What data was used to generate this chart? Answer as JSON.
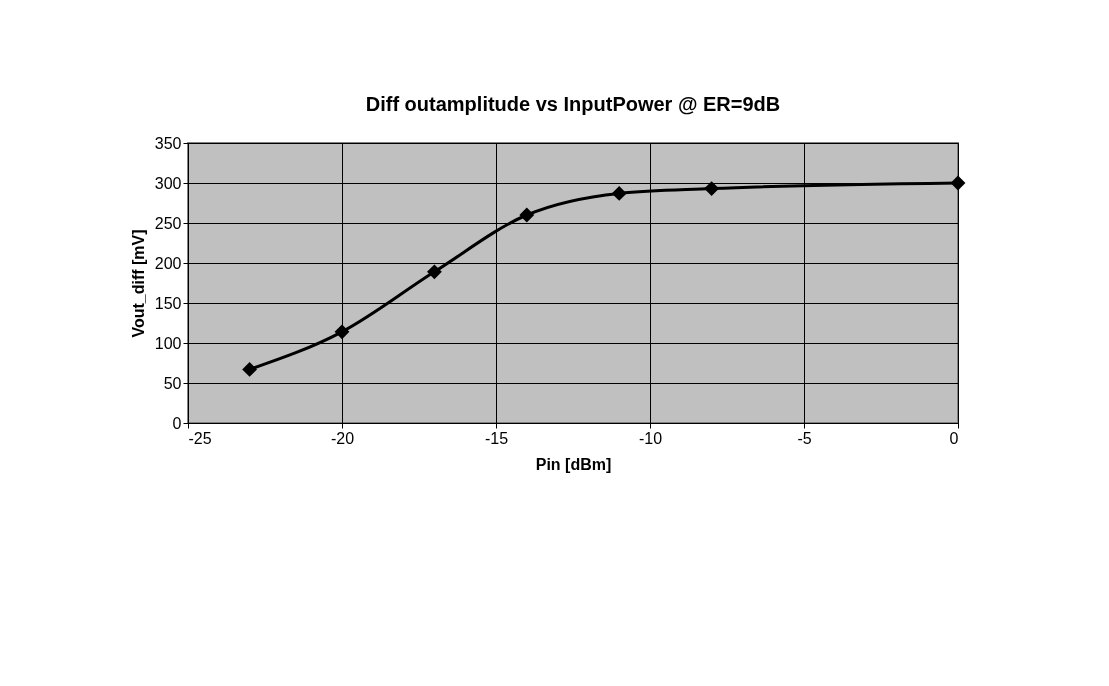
{
  "chart_data": {
    "type": "line",
    "title": "Diff outamplitude vs InputPower @ ER=9dB",
    "xlabel": "Pin [dBm]",
    "ylabel": "Vout_diff [mV]",
    "x": [
      -23,
      -20,
      -17,
      -14,
      -11,
      -8,
      0
    ],
    "series": [
      {
        "color": "#000000",
        "values": [
          67,
          114,
          189,
          260,
          287,
          293,
          300
        ]
      }
    ],
    "xlim": [
      -25,
      0
    ],
    "xticks": [
      -25,
      -20,
      -15,
      -10,
      -5,
      0
    ],
    "ylim": [
      0,
      350
    ],
    "yticks": [
      0,
      50,
      100,
      150,
      200,
      250,
      300,
      350
    ],
    "grid": true,
    "legend": false,
    "marker": "diamond",
    "line_style": "solid"
  }
}
